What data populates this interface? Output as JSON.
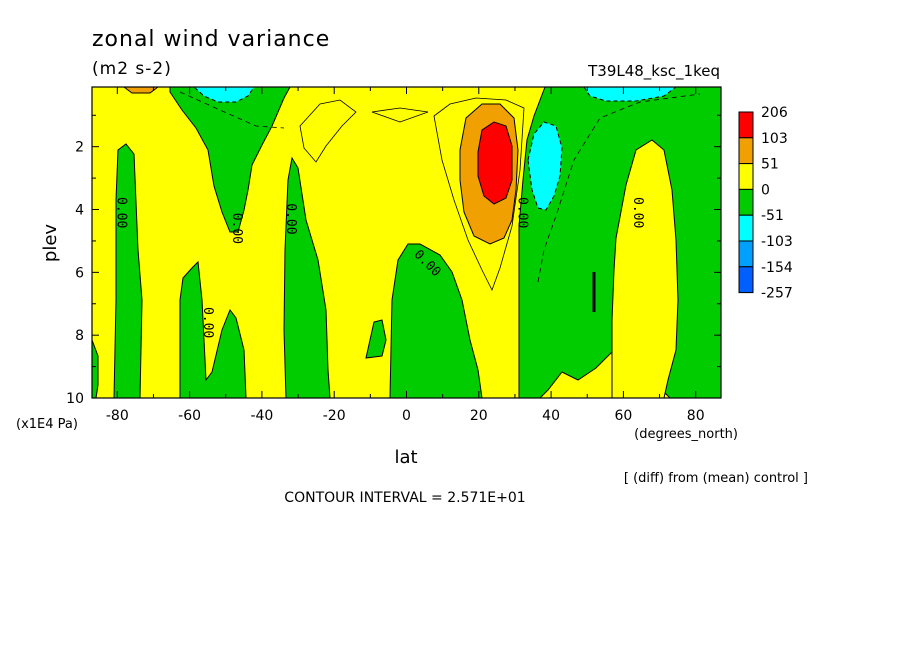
{
  "chart_data": {
    "type": "contour",
    "title": "zonal wind variance",
    "units": "(m2 s-2)",
    "run_label": "T39L48_ksc_1keq",
    "xlabel": "lat",
    "xunits": "(degrees_north)",
    "ylabel": "plev",
    "yunits": "(x1E4 Pa)",
    "x_ticks": [
      "-80",
      "-60",
      "-40",
      "-20",
      "0",
      "20",
      "40",
      "60",
      "80"
    ],
    "x_tick_values": [
      -80,
      -60,
      -40,
      -20,
      0,
      20,
      40,
      60,
      80
    ],
    "y_ticks": [
      "2",
      "4",
      "6",
      "8",
      "10"
    ],
    "y_tick_values": [
      2,
      4,
      6,
      8,
      10
    ],
    "xlim": [
      -87,
      87
    ],
    "ylim": [
      10,
      0.1
    ],
    "legend_entries": [
      "206",
      "103",
      "51",
      "0",
      "-51",
      "-103",
      "-154",
      "-257"
    ],
    "legend_colors": [
      "#ff0000",
      "#f0a000",
      "#ffff00",
      "#00cc00",
      "#00ffff",
      "#00a0ff",
      "#0060ff"
    ],
    "legend_position": "right",
    "contour_labels": [
      {
        "text": "0.00",
        "lat": -80,
        "plev": 4.1
      },
      {
        "text": "0.00",
        "lat": -48,
        "plev": 4.6
      },
      {
        "text": "0.00",
        "lat": -33,
        "plev": 4.3
      },
      {
        "text": "0.00",
        "lat": -56,
        "plev": 7.6
      },
      {
        "text": "0.00",
        "lat": 5,
        "plev": 5.8
      },
      {
        "text": "0.00",
        "lat": 31,
        "plev": 4.1
      },
      {
        "text": "0.00",
        "lat": 63,
        "plev": 4.1
      }
    ],
    "note": "[ (diff) from (mean) control ]",
    "contour_interval": "CONTOUR INTERVAL = 2.571E+01"
  }
}
